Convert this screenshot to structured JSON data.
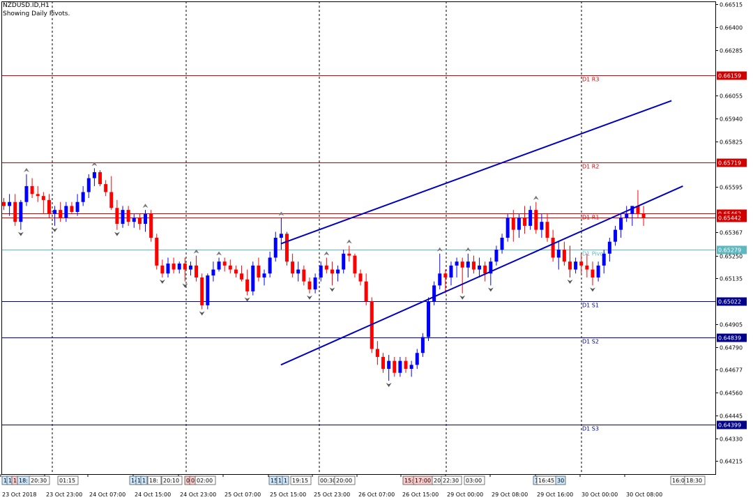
{
  "header": {
    "symbol_line": "NZDUSD.ID,H1",
    "indicator_line": "Showing Daily Pivots."
  },
  "colors": {
    "background": "#ffffff",
    "bull_candle": "#0000ff",
    "bear_candle": "#ff0000",
    "resistance": "#d00000",
    "support": "#00008b",
    "pivot": "#5fb8c0",
    "channel": "#0000c0",
    "separator": "#000000"
  },
  "chart_data": {
    "type": "candlestick",
    "symbol": "NZDUSD.ID",
    "timeframe": "H1",
    "ylim": [
      0.6415,
      0.6653
    ],
    "y_ticks": [
      "0.66515",
      "0.66400",
      "0.66285",
      "0.66055",
      "0.65940",
      "0.65825",
      "0.65595",
      "0.65367",
      "0.65250",
      "0.65135",
      "0.64905",
      "0.64790",
      "0.64677",
      "0.64560",
      "0.64445",
      "0.64330",
      "0.64215"
    ],
    "x_labels": [
      "23 Oct 2018",
      "23 Oct 23:00",
      "24 Oct 07:00",
      "24 Oct 15:00",
      "24 Oct 23:00",
      "25 Oct 07:00",
      "25 Oct 15:00",
      "25 Oct 23:00",
      "26 Oct 07:00",
      "26 Oct 15:00",
      "29 Oct 00:00",
      "29 Oct 08:00",
      "29 Oct 16:00",
      "30 Oct 00:00",
      "30 Oct 08:00"
    ],
    "pivot_levels": [
      {
        "name": "D1 R3",
        "value": 0.66159,
        "label": "0.66159",
        "kind": "resistance"
      },
      {
        "name": "D1 R2",
        "value": 0.65719,
        "label": "0.65719",
        "kind": "resistance"
      },
      {
        "name": "D1 R1",
        "value": 0.65462,
        "label": "0.65462",
        "kind": "resistance"
      },
      {
        "name": "",
        "value": 0.65442,
        "label": "0.65442",
        "kind": "resistance"
      },
      {
        "name": "D1 Pivot",
        "value": 0.65279,
        "label": "0.65279",
        "kind": "pivot"
      },
      {
        "name": "D1 S1",
        "value": 0.65022,
        "label": "0.65022",
        "kind": "support"
      },
      {
        "name": "D1 S2",
        "value": 0.64839,
        "label": "0.64839",
        "kind": "support"
      },
      {
        "name": "D1 S3",
        "value": 0.64399,
        "label": "0.64399",
        "kind": "support"
      }
    ],
    "candles": [
      [
        0.6552,
        0.6554,
        0.6548,
        0.655
      ],
      [
        0.655,
        0.6556,
        0.6545,
        0.6552
      ],
      [
        0.6552,
        0.6556,
        0.654,
        0.6542
      ],
      [
        0.6542,
        0.6553,
        0.6538,
        0.6552
      ],
      [
        0.6552,
        0.6566,
        0.655,
        0.656
      ],
      [
        0.656,
        0.6564,
        0.6554,
        0.6556
      ],
      [
        0.6556,
        0.656,
        0.6552,
        0.6555
      ],
      [
        0.6555,
        0.6557,
        0.6546,
        0.6553
      ],
      [
        0.6553,
        0.6556,
        0.6544,
        0.6546
      ],
      [
        0.6546,
        0.655,
        0.654,
        0.6548
      ],
      [
        0.6548,
        0.6552,
        0.6542,
        0.6544
      ],
      [
        0.6544,
        0.6552,
        0.6542,
        0.655
      ],
      [
        0.655,
        0.6552,
        0.6546,
        0.6547
      ],
      [
        0.6547,
        0.6556,
        0.6545,
        0.6552
      ],
      [
        0.6552,
        0.656,
        0.655,
        0.6557
      ],
      [
        0.6557,
        0.6566,
        0.6554,
        0.6564
      ],
      [
        0.6564,
        0.6569,
        0.656,
        0.6567
      ],
      [
        0.6567,
        0.6568,
        0.656,
        0.6561
      ],
      [
        0.6561,
        0.6563,
        0.6555,
        0.6557
      ],
      [
        0.6557,
        0.6565,
        0.6548,
        0.6549
      ],
      [
        0.6549,
        0.6553,
        0.6538,
        0.6541
      ],
      [
        0.6541,
        0.655,
        0.6539,
        0.6548
      ],
      [
        0.6548,
        0.655,
        0.654,
        0.6542
      ],
      [
        0.6542,
        0.6546,
        0.6539,
        0.6544
      ],
      [
        0.6544,
        0.6546,
        0.6538,
        0.6541
      ],
      [
        0.6541,
        0.6548,
        0.6537,
        0.6546
      ],
      [
        0.6546,
        0.6548,
        0.6532,
        0.6534
      ],
      [
        0.6534,
        0.6536,
        0.6518,
        0.652
      ],
      [
        0.652,
        0.6523,
        0.6514,
        0.6516
      ],
      [
        0.6516,
        0.6524,
        0.6514,
        0.6521
      ],
      [
        0.6521,
        0.6524,
        0.6516,
        0.6518
      ],
      [
        0.6518,
        0.6522,
        0.6516,
        0.6521
      ],
      [
        0.6521,
        0.6524,
        0.6512,
        0.6518
      ],
      [
        0.6518,
        0.6522,
        0.6515,
        0.652
      ],
      [
        0.652,
        0.6525,
        0.6512,
        0.6514
      ],
      [
        0.6514,
        0.6516,
        0.6498,
        0.65
      ],
      [
        0.65,
        0.6516,
        0.6498,
        0.6515
      ],
      [
        0.6515,
        0.6522,
        0.6512,
        0.6518
      ],
      [
        0.6518,
        0.6524,
        0.6517,
        0.6522
      ],
      [
        0.6522,
        0.6524,
        0.6517,
        0.652
      ],
      [
        0.652,
        0.6523,
        0.6516,
        0.6518
      ],
      [
        0.6518,
        0.652,
        0.6514,
        0.6516
      ],
      [
        0.6516,
        0.652,
        0.6512,
        0.6513
      ],
      [
        0.6513,
        0.6518,
        0.6505,
        0.6507
      ],
      [
        0.6507,
        0.6522,
        0.6505,
        0.652
      ],
      [
        0.652,
        0.6524,
        0.6512,
        0.6514
      ],
      [
        0.6514,
        0.6518,
        0.651,
        0.6516
      ],
      [
        0.6516,
        0.6527,
        0.6514,
        0.6524
      ],
      [
        0.6524,
        0.6537,
        0.6522,
        0.6534
      ],
      [
        0.6534,
        0.6544,
        0.6528,
        0.6536
      ],
      [
        0.6536,
        0.6537,
        0.652,
        0.6522
      ],
      [
        0.6522,
        0.6526,
        0.6514,
        0.6516
      ],
      [
        0.6516,
        0.6522,
        0.6512,
        0.6518
      ],
      [
        0.6518,
        0.652,
        0.651,
        0.6512
      ],
      [
        0.6512,
        0.6514,
        0.6506,
        0.6508
      ],
      [
        0.6508,
        0.6516,
        0.6506,
        0.6514
      ],
      [
        0.6514,
        0.6522,
        0.6512,
        0.652
      ],
      [
        0.652,
        0.6524,
        0.6516,
        0.6518
      ],
      [
        0.6518,
        0.6522,
        0.651,
        0.6516
      ],
      [
        0.6516,
        0.652,
        0.6512,
        0.6518
      ],
      [
        0.6518,
        0.6528,
        0.6516,
        0.6526
      ],
      [
        0.6526,
        0.653,
        0.6522,
        0.6525
      ],
      [
        0.6525,
        0.6526,
        0.6514,
        0.6516
      ],
      [
        0.6516,
        0.6518,
        0.651,
        0.6512
      ],
      [
        0.6512,
        0.6516,
        0.65,
        0.6502
      ],
      [
        0.6502,
        0.6504,
        0.6476,
        0.6478
      ],
      [
        0.6478,
        0.6482,
        0.647,
        0.6474
      ],
      [
        0.6474,
        0.6476,
        0.6466,
        0.6468
      ],
      [
        0.6468,
        0.6475,
        0.6462,
        0.6472
      ],
      [
        0.6472,
        0.6474,
        0.6464,
        0.6466
      ],
      [
        0.6466,
        0.6474,
        0.6464,
        0.6472
      ],
      [
        0.6472,
        0.6474,
        0.6466,
        0.6468
      ],
      [
        0.6468,
        0.6472,
        0.6464,
        0.647
      ],
      [
        0.647,
        0.6478,
        0.6468,
        0.6476
      ],
      [
        0.6476,
        0.6486,
        0.6474,
        0.6484
      ],
      [
        0.6484,
        0.6504,
        0.6482,
        0.6502
      ],
      [
        0.6502,
        0.6512,
        0.65,
        0.651
      ],
      [
        0.651,
        0.6526,
        0.6508,
        0.6516
      ],
      [
        0.6516,
        0.6518,
        0.6506,
        0.6514
      ],
      [
        0.6514,
        0.6522,
        0.651,
        0.652
      ],
      [
        0.652,
        0.6524,
        0.6514,
        0.6522
      ],
      [
        0.6522,
        0.6524,
        0.6506,
        0.6519
      ],
      [
        0.6519,
        0.6526,
        0.6514,
        0.6522
      ],
      [
        0.6522,
        0.6525,
        0.6516,
        0.6518
      ],
      [
        0.6518,
        0.6524,
        0.6514,
        0.652
      ],
      [
        0.652,
        0.6522,
        0.6512,
        0.6516
      ],
      [
        0.6516,
        0.6524,
        0.651,
        0.6522
      ],
      [
        0.6522,
        0.653,
        0.652,
        0.6528
      ],
      [
        0.6528,
        0.6536,
        0.6526,
        0.6534
      ],
      [
        0.6534,
        0.6546,
        0.6532,
        0.6544
      ],
      [
        0.6544,
        0.6548,
        0.6532,
        0.6538
      ],
      [
        0.6538,
        0.6546,
        0.6534,
        0.6544
      ],
      [
        0.6544,
        0.655,
        0.6536,
        0.654
      ],
      [
        0.654,
        0.655,
        0.6538,
        0.6548
      ],
      [
        0.6548,
        0.6552,
        0.6536,
        0.6538
      ],
      [
        0.6538,
        0.6546,
        0.6534,
        0.6542
      ],
      [
        0.6542,
        0.6546,
        0.6532,
        0.6534
      ],
      [
        0.6534,
        0.6538,
        0.6522,
        0.6524
      ],
      [
        0.6524,
        0.6532,
        0.6518,
        0.6528
      ],
      [
        0.6528,
        0.6532,
        0.652,
        0.6522
      ],
      [
        0.6522,
        0.653,
        0.6514,
        0.6518
      ],
      [
        0.6518,
        0.6524,
        0.6516,
        0.6522
      ],
      [
        0.6522,
        0.6526,
        0.6516,
        0.652
      ],
      [
        0.652,
        0.6526,
        0.6514,
        0.6518
      ],
      [
        0.6518,
        0.6522,
        0.651,
        0.6514
      ],
      [
        0.6514,
        0.6522,
        0.6512,
        0.652
      ],
      [
        0.652,
        0.6528,
        0.6516,
        0.6526
      ],
      [
        0.6526,
        0.6534,
        0.6522,
        0.6532
      ],
      [
        0.6532,
        0.654,
        0.653,
        0.6538
      ],
      [
        0.6538,
        0.6546,
        0.6534,
        0.6544
      ],
      [
        0.6544,
        0.655,
        0.6542,
        0.6546
      ],
      [
        0.6546,
        0.655,
        0.654,
        0.655
      ],
      [
        0.655,
        0.6558,
        0.6544,
        0.6546
      ],
      [
        0.6546,
        0.655,
        0.654,
        0.6544
      ]
    ],
    "channel": {
      "upper": {
        "start": [
          49,
          0.6531
        ],
        "end": [
          118,
          0.6603
        ]
      },
      "lower": {
        "start": [
          49,
          0.647
        ],
        "end": [
          120,
          0.656
        ]
      }
    }
  },
  "x_axis_badges": [
    {
      "text": "1",
      "bg": "#cce8ff"
    },
    {
      "text": "1",
      "bg": "#cce8ff"
    },
    {
      "text": "1",
      "bg": "#ffcccc"
    },
    {
      "text": "18:",
      "bg": "#cce8ff"
    },
    {
      "text": "20:30",
      "bg": "#ffffff"
    },
    {
      "text": "01:15",
      "bg": "#ffffff"
    },
    {
      "text": "14:",
      "bg": "#cce8ff"
    },
    {
      "text": "1",
      "bg": "#cce8ff"
    },
    {
      "text": "1",
      "bg": "#cce8ff"
    },
    {
      "text": "18:",
      "bg": "#ffffff"
    },
    {
      "text": "20:10",
      "bg": "#ffffff"
    },
    {
      "text": "0",
      "bg": "#ffcccc"
    },
    {
      "text": "0",
      "bg": "#ffcccc"
    },
    {
      "text": "02:00",
      "bg": "#ffffff"
    },
    {
      "text": "15:",
      "bg": "#cce8ff"
    },
    {
      "text": "1",
      "bg": "#cce8ff"
    },
    {
      "text": "1",
      "bg": "#cce8ff"
    },
    {
      "text": "19:15",
      "bg": "#ffffff"
    },
    {
      "text": "00:30",
      "bg": "#ffffff"
    },
    {
      "text": "20:00",
      "bg": "#ffffff"
    },
    {
      "text": "15:",
      "bg": "#ffcccc"
    },
    {
      "text": "17:00",
      "bg": "#ffcccc"
    },
    {
      "text": "20:",
      "bg": "#ffffff"
    },
    {
      "text": "22:30",
      "bg": "#ffffff"
    },
    {
      "text": "03:00",
      "bg": "#ffffff"
    },
    {
      "text": "1",
      "bg": "#cce8ff"
    },
    {
      "text": "16:45",
      "bg": "#ffffff"
    },
    {
      "text": "30",
      "bg": "#cce8ff"
    },
    {
      "text": "16:0",
      "bg": "#ffffff"
    },
    {
      "text": "18:30",
      "bg": "#ffffff"
    }
  ]
}
